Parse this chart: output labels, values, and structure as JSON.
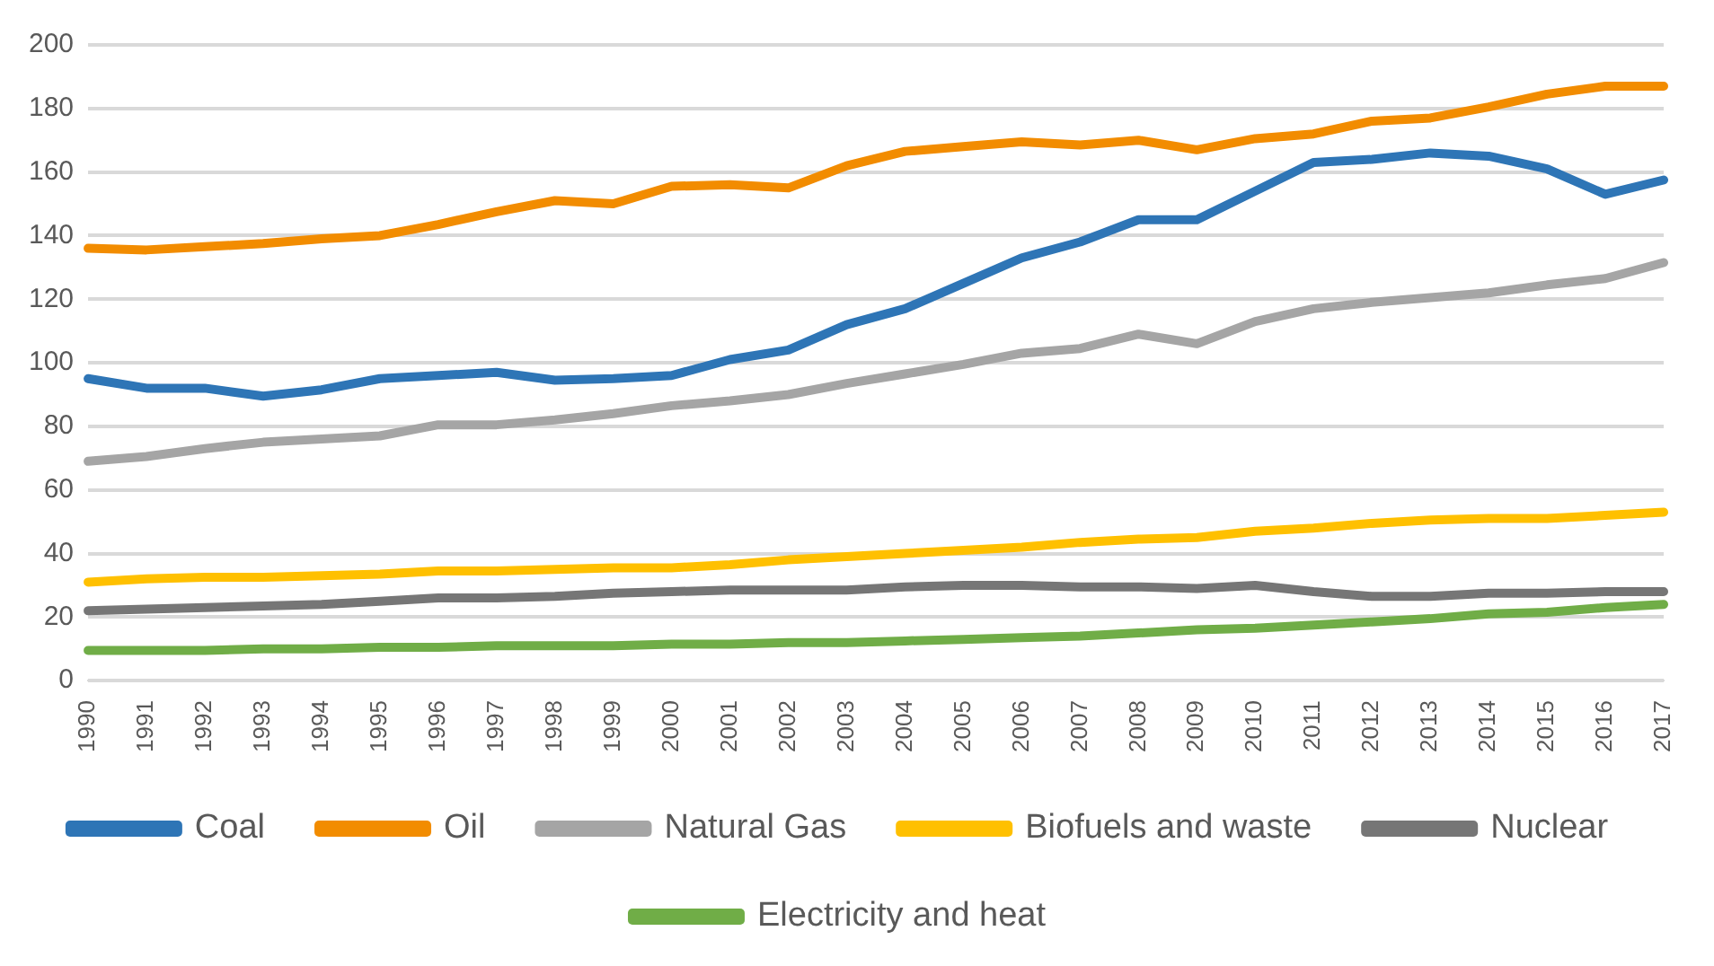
{
  "chart_data": {
    "type": "line",
    "categories": [
      "1990",
      "1991",
      "1992",
      "1993",
      "1994",
      "1995",
      "1996",
      "1997",
      "1998",
      "1999",
      "2000",
      "2001",
      "2002",
      "2003",
      "2004",
      "2005",
      "2006",
      "2007",
      "2008",
      "2009",
      "2010",
      "2011",
      "2012",
      "2013",
      "2014",
      "2015",
      "2016",
      "2017"
    ],
    "series": [
      {
        "name": "Coal",
        "color": "#2e75b6",
        "values": [
          95,
          92,
          92,
          89.5,
          91.5,
          95,
          96,
          97,
          94.5,
          95,
          96,
          101,
          104,
          112,
          117,
          125,
          133,
          138,
          145,
          145,
          154,
          163,
          164,
          166,
          165,
          161,
          153,
          157.5
        ]
      },
      {
        "name": "Oil",
        "color": "#f28c00",
        "values": [
          136,
          135.5,
          136.5,
          137.5,
          139,
          140,
          143.5,
          147.5,
          151,
          150,
          155.5,
          156,
          155,
          162,
          166.5,
          168,
          169.5,
          168.5,
          170,
          167,
          170.5,
          172,
          176,
          177,
          180.5,
          184.5,
          187,
          187
        ]
      },
      {
        "name": "Natural Gas",
        "color": "#a5a5a5",
        "values": [
          69,
          70.5,
          73,
          75,
          76,
          77,
          80.5,
          80.5,
          82,
          84,
          86.5,
          88,
          90,
          93.5,
          96.5,
          99.5,
          103,
          104.5,
          109,
          106,
          113,
          117,
          119,
          120.5,
          122,
          124.5,
          126.5,
          131.5
        ]
      },
      {
        "name": "Biofuels and waste",
        "color": "#ffc000",
        "values": [
          31,
          32,
          32.5,
          32.5,
          33,
          33.5,
          34.5,
          34.5,
          35,
          35.5,
          35.5,
          36.5,
          38,
          39,
          40,
          41,
          42,
          43.5,
          44.5,
          45,
          47,
          48,
          49.5,
          50.5,
          51,
          51,
          52,
          53
        ]
      },
      {
        "name": "Nuclear",
        "color": "#767676",
        "values": [
          22,
          22.5,
          23,
          23.5,
          24,
          25,
          26,
          26,
          26.5,
          27.5,
          28,
          28.5,
          28.5,
          28.5,
          29.5,
          30,
          30,
          29.5,
          29.5,
          29,
          30,
          28,
          26.5,
          26.5,
          27.5,
          27.5,
          28,
          28
        ]
      },
      {
        "name": "Electricity and heat",
        "color": "#70ad47",
        "values": [
          9.5,
          9.5,
          9.5,
          10,
          10,
          10.5,
          10.5,
          11,
          11,
          11,
          11.5,
          11.5,
          12,
          12,
          12.5,
          13,
          13.5,
          14,
          15,
          16,
          16.5,
          17.5,
          18.5,
          19.5,
          21,
          21.5,
          23,
          24
        ]
      }
    ],
    "ylim": [
      0,
      200
    ],
    "yticks": [
      0,
      20,
      40,
      60,
      80,
      100,
      120,
      140,
      160,
      180,
      200
    ],
    "grid": "y",
    "legend": "bottom",
    "marker": "none",
    "line_style": "solid"
  }
}
